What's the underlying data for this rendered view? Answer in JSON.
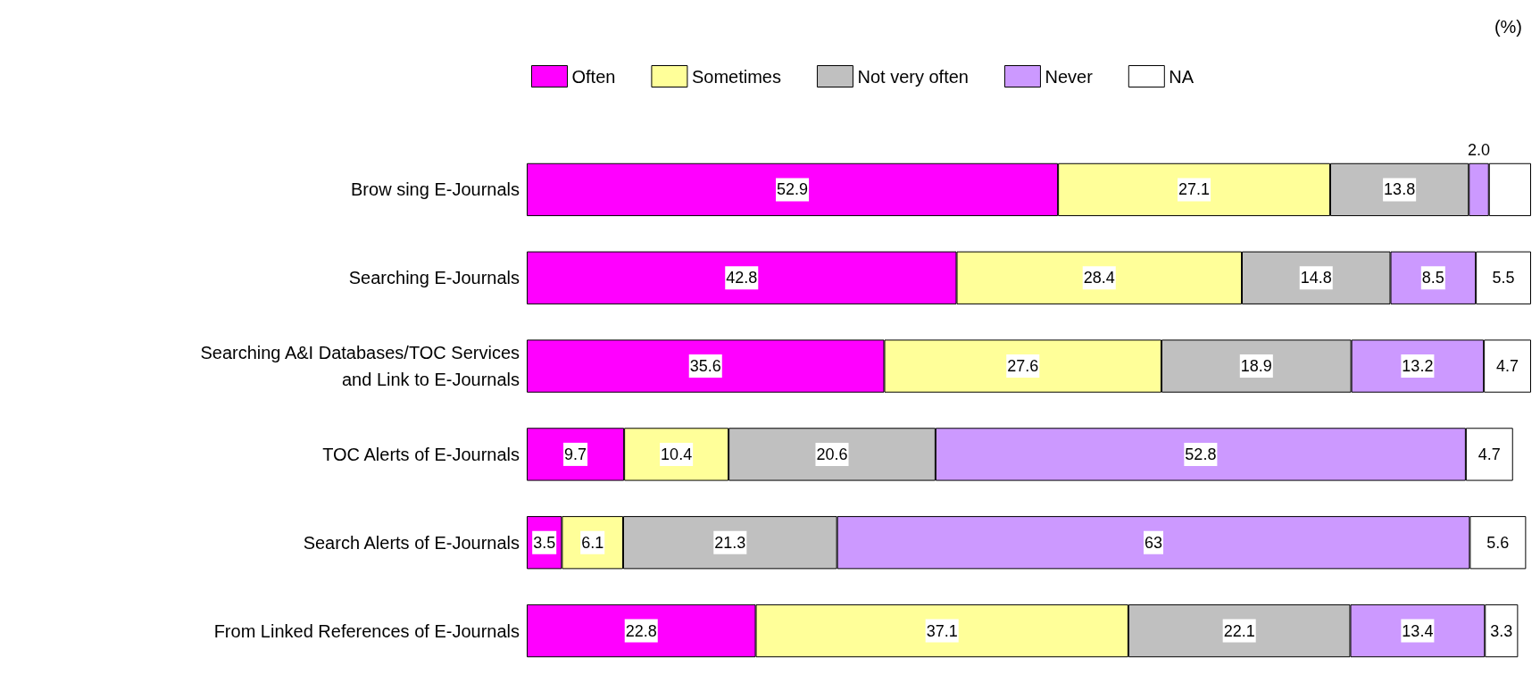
{
  "chart_data": {
    "type": "bar",
    "orientation": "horizontal",
    "stacked": true,
    "categories": [
      "Brow sing E-Journals",
      "Searching E-Journals",
      "Searching A&I Databases/TOC Services\nand Link to E-Journals",
      "TOC Alerts of E-Journals",
      "Search Alerts of E-Journals",
      "From Linked References of E-Journals"
    ],
    "series": [
      {
        "name": "Often",
        "color": "#ff00ff",
        "values": [
          52.9,
          42.8,
          35.6,
          9.7,
          3.5,
          22.8
        ]
      },
      {
        "name": "Sometimes",
        "color": "#ffff99",
        "values": [
          27.1,
          28.4,
          27.6,
          10.4,
          6.1,
          37.1
        ]
      },
      {
        "name": "Not very often",
        "color": "#c0c0c0",
        "values": [
          13.8,
          14.8,
          18.9,
          20.6,
          21.3,
          22.1
        ]
      },
      {
        "name": "Never",
        "color": "#cc99ff",
        "values": [
          2.0,
          8.5,
          13.2,
          52.8,
          63,
          13.4
        ],
        "value_labels": [
          "2.0",
          "8.5",
          "13.2",
          "52.8",
          "63",
          "13.4"
        ]
      },
      {
        "name": "NA",
        "color": "#ffffff",
        "values": [
          4.2,
          5.5,
          4.7,
          4.7,
          5.6,
          3.3
        ],
        "value_labels": [
          null,
          "5.5",
          "4.7",
          "4.7",
          "5.6",
          "3.3"
        ]
      }
    ],
    "data_labels": true,
    "xlim": [
      0,
      100
    ],
    "tick_labels": "y",
    "legend": "top",
    "annotations": [
      "(%)"
    ]
  }
}
